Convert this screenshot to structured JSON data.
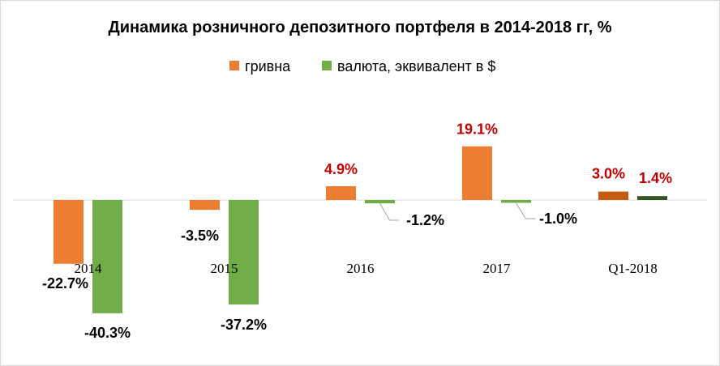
{
  "chart_data": {
    "type": "bar",
    "title": "Динамика розничного депозитного портфеля в 2014-2018 гг, %",
    "categories": [
      "2014",
      "2015",
      "2016",
      "2017",
      "Q1-2018"
    ],
    "series": [
      {
        "name": "гривна",
        "values": [
          -22.7,
          -3.5,
          4.9,
          19.1,
          3.0
        ],
        "labels": [
          "-22.7%",
          "-3.5%",
          "4.9%",
          "19.1%",
          "3.0%"
        ],
        "color": "#ED7D31",
        "highlight_color": "#C55A11"
      },
      {
        "name": "валюта, эквивалент в $",
        "values": [
          -40.3,
          -37.2,
          -1.2,
          -1.0,
          1.4
        ],
        "labels": [
          "-40.3%",
          "-37.2%",
          "-1.2%",
          "-1.0%",
          "1.4%"
        ],
        "color": "#70AD47",
        "highlight_color": "#375623"
      }
    ],
    "xlabel": "",
    "ylabel": "",
    "ylim": [
      -42,
      22
    ],
    "grid": false,
    "legend_position": "top-center",
    "positive_label_color": "#C00000",
    "negative_label_color": "#000000"
  }
}
